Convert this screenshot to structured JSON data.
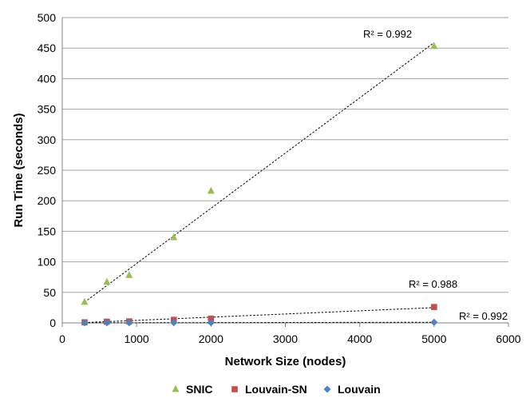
{
  "chart_data": {
    "type": "scatter",
    "title": "",
    "xlabel": "Network Size (nodes)",
    "ylabel": "Run Time (seconds)",
    "xlim": [
      0,
      6000
    ],
    "ylim": [
      0,
      500
    ],
    "xticks": [
      0,
      1000,
      2000,
      3000,
      4000,
      5000,
      6000
    ],
    "yticks": [
      0,
      50,
      100,
      150,
      200,
      250,
      300,
      350,
      400,
      450,
      500
    ],
    "grid": "horizontal",
    "legend_position": "bottom",
    "series": [
      {
        "name": "SNIC",
        "color": "#9bbb59",
        "marker": "triangle",
        "x": [
          300,
          600,
          900,
          1500,
          2000,
          5000
        ],
        "y": [
          34,
          67,
          78,
          140,
          216,
          453
        ],
        "trend": {
          "x": [
            300,
            5000
          ],
          "y": [
            34,
            459
          ]
        },
        "r2_label": "R² = 0.992"
      },
      {
        "name": "Louvain-SN",
        "color": "#c0504d",
        "marker": "square",
        "x": [
          300,
          600,
          900,
          1500,
          2000,
          5000
        ],
        "y": [
          1,
          2,
          2.5,
          5,
          7,
          26
        ],
        "trend": {
          "x": [
            300,
            5000
          ],
          "y": [
            0.5,
            25
          ]
        },
        "r2_label": "R² = 0.988"
      },
      {
        "name": "Louvain",
        "color": "#4f81bd",
        "marker": "diamond",
        "x": [
          300,
          600,
          900,
          1500,
          2000,
          5000
        ],
        "y": [
          0.1,
          0.2,
          0.2,
          0.3,
          0.4,
          1
        ],
        "trend": {
          "x": [
            300,
            5000
          ],
          "y": [
            0.1,
            1
          ]
        },
        "r2_label": "R² = 0.992"
      }
    ]
  }
}
